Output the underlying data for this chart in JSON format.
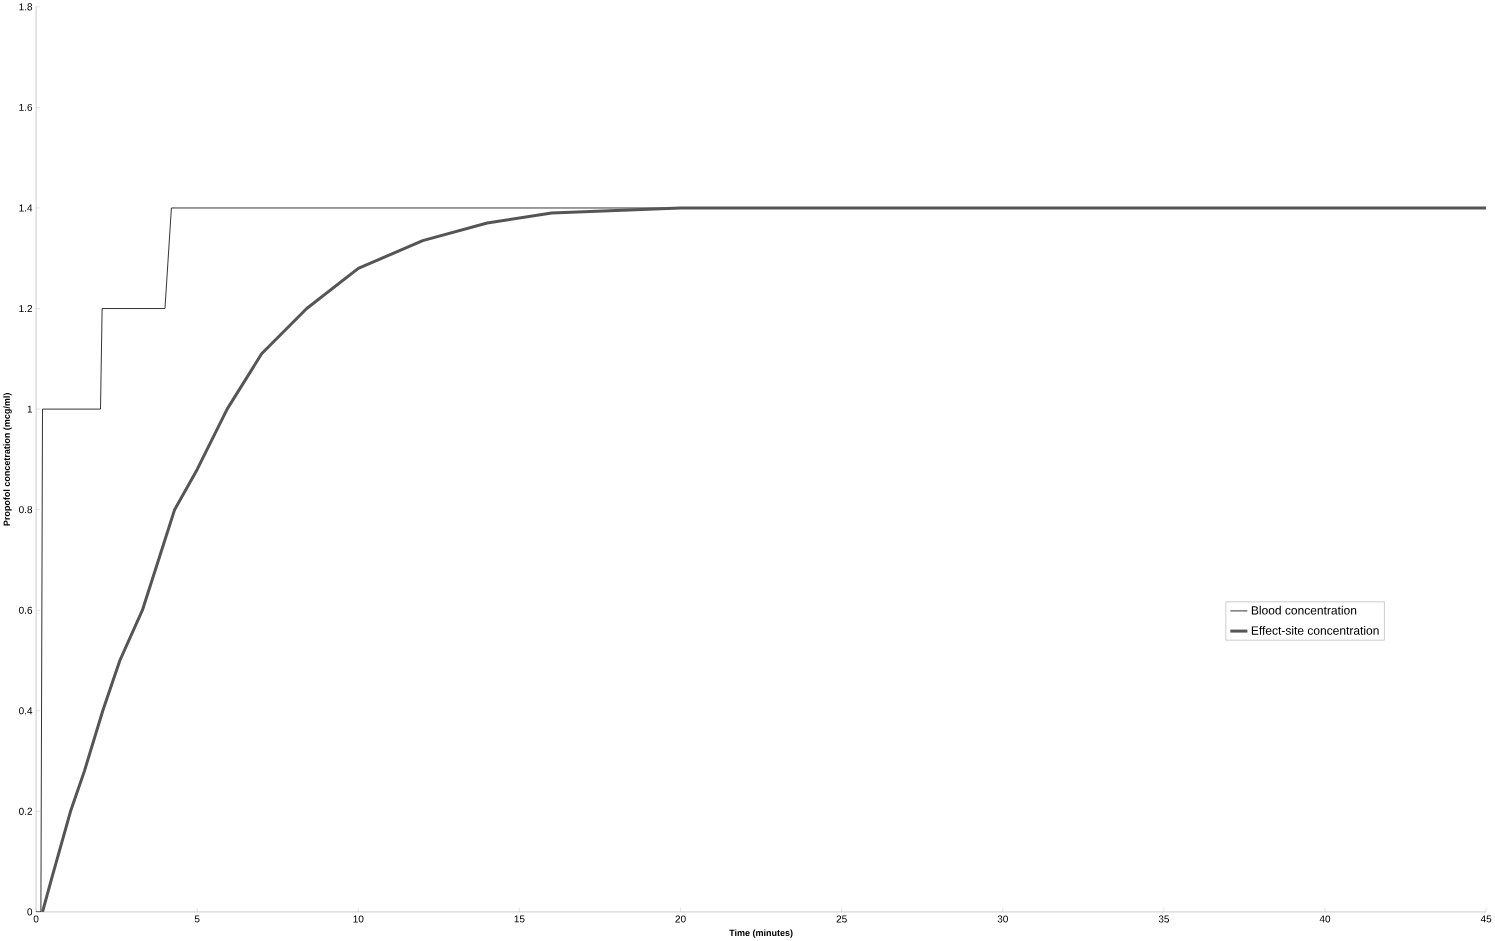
{
  "chart_data": {
    "type": "line",
    "xlabel": "Time (minutes)",
    "ylabel": "Propofol concetration (mcg/ml)",
    "xlim": [
      0,
      45
    ],
    "ylim": [
      0,
      1.8
    ],
    "xticks": [
      0,
      5,
      10,
      15,
      20,
      25,
      30,
      35,
      40,
      45
    ],
    "yticks": [
      0,
      0.2,
      0.4,
      0.6,
      0.8,
      1,
      1.2,
      1.4,
      1.6,
      1.8
    ],
    "grid": false,
    "legend": "right",
    "marker": "none",
    "line_style": "solid",
    "series": [
      {
        "name": "Blood concentration",
        "color": "#000000",
        "x": [
          0,
          0.15,
          0.2,
          2.0,
          2.05,
          4.0,
          4.2,
          45
        ],
        "values": [
          0,
          0,
          1,
          1,
          1.2,
          1.2,
          1.4,
          1.4
        ]
      },
      {
        "name": "Effect-site concentration",
        "color": "#555555",
        "x": [
          0.2,
          0.5,
          1.07,
          1.5,
          2.07,
          2.6,
          3.3,
          3.8,
          4.3,
          5.0,
          5.93,
          7,
          8.4,
          10,
          12,
          14,
          16,
          18,
          20,
          25,
          30,
          35,
          40,
          45
        ],
        "values": [
          0,
          0.07,
          0.2,
          0.28,
          0.4,
          0.5,
          0.6,
          0.7,
          0.8,
          0.88,
          1.0,
          1.11,
          1.2,
          1.28,
          1.335,
          1.37,
          1.39,
          1.395,
          1.4,
          1.4,
          1.4,
          1.4,
          1.4,
          1.4
        ]
      }
    ]
  }
}
